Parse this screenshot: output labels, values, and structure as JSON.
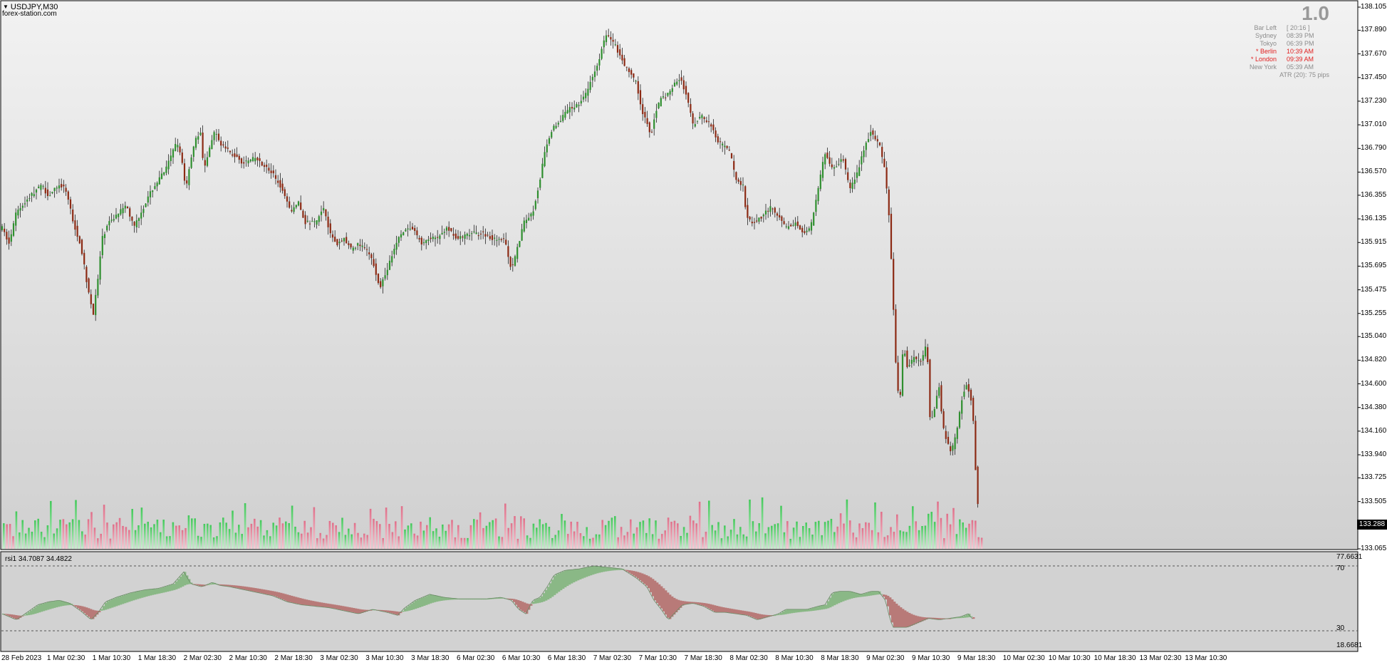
{
  "chart": {
    "symbol": "USDJPY,M30",
    "watermark": "forex-station.com",
    "big_number": "1.0",
    "current_price": "133.288"
  },
  "sessions": [
    {
      "name": "Bar Left",
      "time": "[ 20:16 ]",
      "active": false
    },
    {
      "name": "Sydney",
      "time": "08:39 PM",
      "active": false
    },
    {
      "name": "Tokyo",
      "time": "06:39 PM",
      "active": false
    },
    {
      "name": "* Berlin",
      "time": "10:39 AM",
      "active": true
    },
    {
      "name": "* London",
      "time": "09:39 AM",
      "active": true
    },
    {
      "name": "New York",
      "time": "05:39 AM",
      "active": false
    }
  ],
  "atr_text": "ATR (20): 75 pips",
  "price_axis": [
    "138.105",
    "137.890",
    "137.670",
    "137.450",
    "137.230",
    "137.010",
    "136.790",
    "136.570",
    "136.355",
    "136.135",
    "135.915",
    "135.695",
    "135.475",
    "135.255",
    "135.040",
    "134.820",
    "134.600",
    "134.380",
    "134.160",
    "133.940",
    "133.725",
    "133.505",
    "133.065"
  ],
  "rsi": {
    "label": "rsi1  34.7087 34.4822",
    "axis": [
      "77.6631",
      "70",
      "30",
      "18.6681"
    ]
  },
  "time_axis": [
    "28 Feb 2023",
    "1 Mar 02:30",
    "1 Mar 10:30",
    "1 Mar 18:30",
    "2 Mar 02:30",
    "2 Mar 10:30",
    "2 Mar 18:30",
    "3 Mar 02:30",
    "3 Mar 10:30",
    "3 Mar 18:30",
    "6 Mar 02:30",
    "6 Mar 10:30",
    "6 Mar 18:30",
    "7 Mar 02:30",
    "7 Mar 10:30",
    "7 Mar 18:30",
    "8 Mar 02:30",
    "8 Mar 10:30",
    "8 Mar 18:30",
    "9 Mar 02:30",
    "9 Mar 10:30",
    "9 Mar 18:30",
    "10 Mar 02:30",
    "10 Mar 10:30",
    "10 Mar 18:30",
    "13 Mar 02:30",
    "13 Mar 10:30"
  ],
  "colors": {
    "bull": "#2f8f2f",
    "bear": "#8c2a14",
    "vol_up": "#43c95a",
    "vol_down": "#e0708a",
    "rsi_up_fill": "#8ab886",
    "rsi_down_fill": "#b87a78",
    "session_active": "#e02020"
  },
  "chart_data": {
    "type": "candlestick",
    "price_path": [
      [
        0,
        136.05
      ],
      [
        10,
        135.9
      ],
      [
        20,
        136.2
      ],
      [
        40,
        136.35
      ],
      [
        55,
        136.45
      ],
      [
        65,
        136.35
      ],
      [
        80,
        136.45
      ],
      [
        90,
        136.4
      ],
      [
        100,
        136.1
      ],
      [
        110,
        135.9
      ],
      [
        120,
        135.5
      ],
      [
        128,
        135.25
      ],
      [
        135,
        135.6
      ],
      [
        140,
        135.95
      ],
      [
        150,
        136.1
      ],
      [
        165,
        136.2
      ],
      [
        175,
        136.25
      ],
      [
        185,
        136.05
      ],
      [
        195,
        136.2
      ],
      [
        210,
        136.4
      ],
      [
        230,
        136.6
      ],
      [
        245,
        136.85
      ],
      [
        252,
        136.7
      ],
      [
        258,
        136.4
      ],
      [
        262,
        136.6
      ],
      [
        270,
        136.85
      ],
      [
        278,
        136.95
      ],
      [
        283,
        136.6
      ],
      [
        290,
        136.75
      ],
      [
        298,
        136.95
      ],
      [
        305,
        136.85
      ],
      [
        320,
        136.75
      ],
      [
        330,
        136.7
      ],
      [
        340,
        136.65
      ],
      [
        355,
        136.7
      ],
      [
        365,
        136.65
      ],
      [
        380,
        136.55
      ],
      [
        395,
        136.4
      ],
      [
        405,
        136.2
      ],
      [
        415,
        136.3
      ],
      [
        425,
        136.1
      ],
      [
        440,
        136.1
      ],
      [
        452,
        136.25
      ],
      [
        460,
        136.0
      ],
      [
        470,
        135.9
      ],
      [
        480,
        135.95
      ],
      [
        490,
        135.85
      ],
      [
        500,
        135.9
      ],
      [
        510,
        135.85
      ],
      [
        520,
        135.75
      ],
      [
        530,
        135.5
      ],
      [
        540,
        135.65
      ],
      [
        550,
        135.85
      ],
      [
        560,
        136.0
      ],
      [
        575,
        136.05
      ],
      [
        590,
        135.9
      ],
      [
        600,
        135.95
      ],
      [
        610,
        135.95
      ],
      [
        625,
        136.05
      ],
      [
        640,
        135.95
      ],
      [
        660,
        136.0
      ],
      [
        675,
        136.0
      ],
      [
        690,
        135.95
      ],
      [
        705,
        135.95
      ],
      [
        715,
        135.65
      ],
      [
        725,
        135.9
      ],
      [
        732,
        136.1
      ],
      [
        745,
        136.2
      ],
      [
        755,
        136.5
      ],
      [
        760,
        136.7
      ],
      [
        770,
        136.95
      ],
      [
        782,
        137.05
      ],
      [
        795,
        137.15
      ],
      [
        808,
        137.2
      ],
      [
        820,
        137.3
      ],
      [
        828,
        137.45
      ],
      [
        835,
        137.55
      ],
      [
        845,
        137.8
      ],
      [
        850,
        137.85
      ],
      [
        860,
        137.75
      ],
      [
        875,
        137.55
      ],
      [
        890,
        137.4
      ],
      [
        900,
        137.1
      ],
      [
        905,
        137.05
      ],
      [
        910,
        136.9
      ],
      [
        918,
        137.15
      ],
      [
        925,
        137.25
      ],
      [
        935,
        137.3
      ],
      [
        945,
        137.4
      ],
      [
        952,
        137.45
      ],
      [
        960,
        137.3
      ],
      [
        970,
        137.0
      ],
      [
        980,
        137.1
      ],
      [
        995,
        137.0
      ],
      [
        1005,
        136.85
      ],
      [
        1015,
        136.8
      ],
      [
        1022,
        136.75
      ],
      [
        1030,
        136.5
      ],
      [
        1040,
        136.45
      ],
      [
        1045,
        136.15
      ],
      [
        1055,
        136.1
      ],
      [
        1065,
        136.15
      ],
      [
        1080,
        136.25
      ],
      [
        1090,
        136.15
      ],
      [
        1100,
        136.05
      ],
      [
        1115,
        136.1
      ],
      [
        1125,
        136.0
      ],
      [
        1135,
        136.05
      ],
      [
        1145,
        136.4
      ],
      [
        1155,
        136.75
      ],
      [
        1165,
        136.6
      ],
      [
        1180,
        136.7
      ],
      [
        1185,
        136.55
      ],
      [
        1190,
        136.4
      ],
      [
        1200,
        136.55
      ],
      [
        1210,
        136.8
      ],
      [
        1220,
        136.95
      ],
      [
        1232,
        136.8
      ],
      [
        1240,
        136.55
      ],
      [
        1245,
        136.15
      ],
      [
        1250,
        135.5
      ],
      [
        1255,
        134.7
      ],
      [
        1260,
        134.4
      ],
      [
        1265,
        135.0
      ],
      [
        1270,
        134.75
      ],
      [
        1280,
        134.85
      ],
      [
        1290,
        134.8
      ],
      [
        1298,
        135.0
      ],
      [
        1303,
        134.2
      ],
      [
        1308,
        134.35
      ],
      [
        1315,
        134.6
      ],
      [
        1320,
        134.2
      ],
      [
        1325,
        134.1
      ],
      [
        1332,
        133.95
      ],
      [
        1340,
        134.15
      ],
      [
        1348,
        134.5
      ],
      [
        1355,
        134.6
      ],
      [
        1362,
        134.4
      ],
      [
        1368,
        133.6
      ],
      [
        1372,
        133.288
      ]
    ],
    "rsi_line": [
      [
        0,
        40
      ],
      [
        10,
        38
      ],
      [
        20,
        36
      ],
      [
        35,
        41
      ],
      [
        50,
        46
      ],
      [
        65,
        48
      ],
      [
        80,
        49
      ],
      [
        95,
        47
      ],
      [
        110,
        42
      ],
      [
        125,
        36
      ],
      [
        135,
        41
      ],
      [
        145,
        48
      ],
      [
        160,
        51
      ],
      [
        180,
        54
      ],
      [
        200,
        56
      ],
      [
        220,
        57
      ],
      [
        240,
        60
      ],
      [
        255,
        68
      ],
      [
        265,
        60
      ],
      [
        280,
        58
      ],
      [
        295,
        61
      ],
      [
        305,
        59
      ],
      [
        320,
        58
      ],
      [
        340,
        56
      ],
      [
        360,
        54
      ],
      [
        380,
        52
      ],
      [
        400,
        48
      ],
      [
        420,
        46
      ],
      [
        440,
        45
      ],
      [
        460,
        44
      ],
      [
        480,
        42
      ],
      [
        500,
        40
      ],
      [
        520,
        43
      ],
      [
        540,
        41
      ],
      [
        555,
        39
      ],
      [
        565,
        44
      ],
      [
        580,
        49
      ],
      [
        600,
        53
      ],
      [
        620,
        51
      ],
      [
        640,
        50
      ],
      [
        660,
        50
      ],
      [
        680,
        50
      ],
      [
        700,
        51
      ],
      [
        715,
        49
      ],
      [
        725,
        43
      ],
      [
        735,
        40
      ],
      [
        745,
        49
      ],
      [
        755,
        51
      ],
      [
        765,
        58
      ],
      [
        775,
        66
      ],
      [
        790,
        69
      ],
      [
        810,
        70
      ],
      [
        830,
        72
      ],
      [
        850,
        71
      ],
      [
        870,
        70
      ],
      [
        890,
        64
      ],
      [
        905,
        58
      ],
      [
        915,
        49
      ],
      [
        925,
        43
      ],
      [
        935,
        36
      ],
      [
        945,
        41
      ],
      [
        955,
        46
      ],
      [
        970,
        47
      ],
      [
        985,
        45
      ],
      [
        1000,
        41
      ],
      [
        1015,
        41
      ],
      [
        1030,
        40
      ],
      [
        1045,
        39
      ],
      [
        1060,
        36
      ],
      [
        1075,
        38
      ],
      [
        1090,
        40
      ],
      [
        1100,
        43
      ],
      [
        1115,
        43
      ],
      [
        1130,
        43
      ],
      [
        1145,
        45
      ],
      [
        1155,
        46
      ],
      [
        1165,
        54
      ],
      [
        1175,
        55
      ],
      [
        1190,
        55
      ],
      [
        1205,
        53
      ],
      [
        1220,
        55
      ],
      [
        1230,
        55
      ],
      [
        1240,
        49
      ],
      [
        1245,
        39
      ],
      [
        1250,
        31
      ],
      [
        1258,
        31
      ],
      [
        1270,
        31
      ],
      [
        1285,
        34
      ],
      [
        1300,
        37
      ],
      [
        1315,
        36
      ],
      [
        1330,
        37
      ],
      [
        1345,
        38
      ],
      [
        1356,
        40
      ],
      [
        1365,
        35
      ]
    ]
  }
}
